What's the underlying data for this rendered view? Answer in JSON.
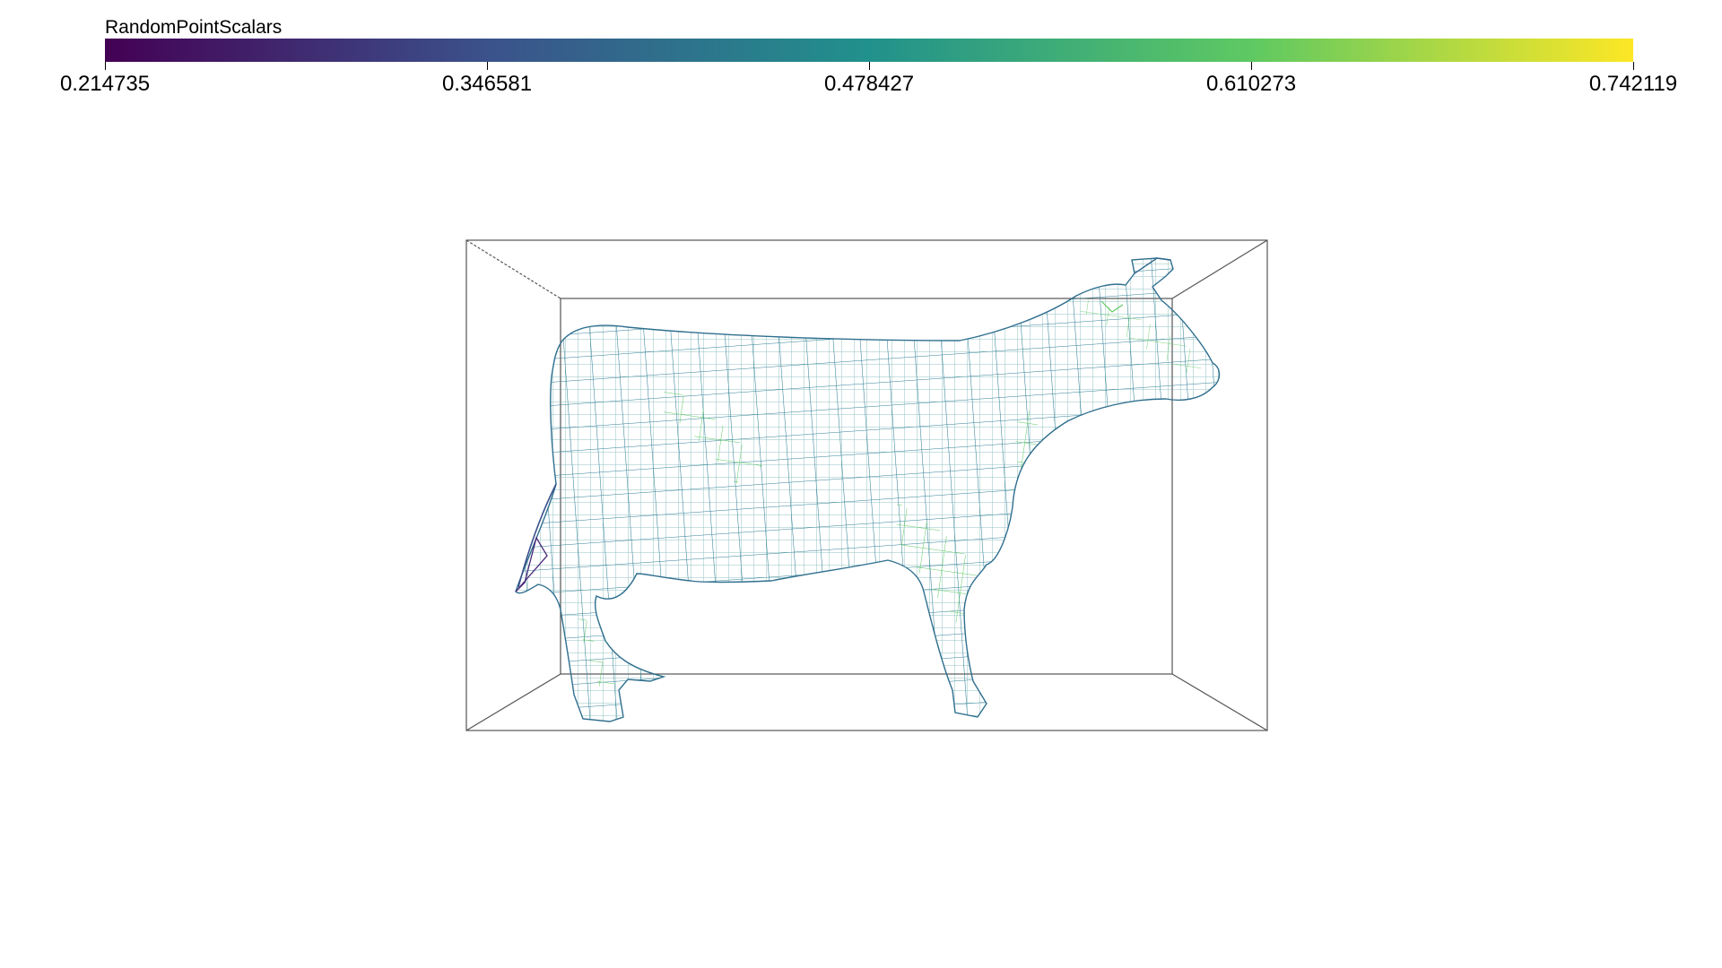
{
  "scalar_bar": {
    "title": "RandomPointScalars",
    "colormap": "viridis",
    "min": 0.214735,
    "max": 0.742119,
    "tick_labels": [
      "0.214735",
      "0.346581",
      "0.478427",
      "0.610273",
      "0.742119"
    ],
    "colors": [
      "#440154",
      "#3b528b",
      "#21918c",
      "#5ec962",
      "#fde725"
    ]
  },
  "scene": {
    "object": "cow-mesh",
    "representation": "wireframe",
    "background": "#ffffff",
    "bounding_box_color": "#555555"
  }
}
